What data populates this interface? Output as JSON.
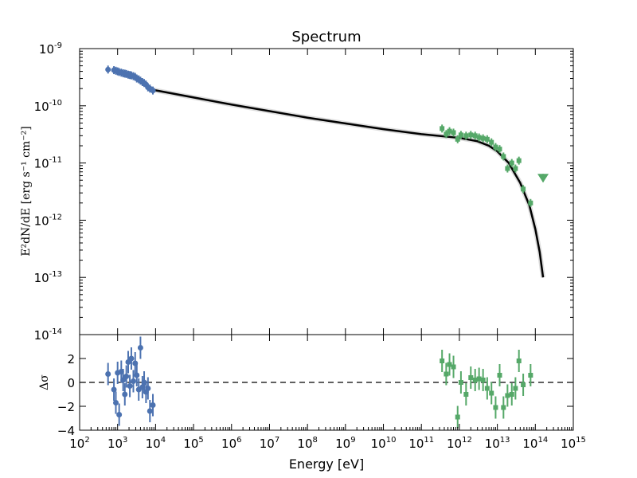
{
  "chart_data": [
    {
      "type": "scatter",
      "title": "Spectrum",
      "xlabel": "",
      "ylabel": "E²dN/dE [erg s⁻¹ cm⁻²]",
      "xscale": "log",
      "yscale": "log",
      "xlim": [
        100,
        1000000000000000.0
      ],
      "ylim": [
        1e-14,
        1e-09
      ],
      "xtick_labels": [
        "10^2",
        "10^3",
        "10^4",
        "10^5",
        "10^6",
        "10^7",
        "10^8",
        "10^9",
        "10^10",
        "10^11",
        "10^12",
        "10^13",
        "10^14",
        "10^15"
      ],
      "ytick_labels": [
        "10^-14",
        "10^-13",
        "10^-12",
        "10^-11",
        "10^-10",
        "10^-9"
      ],
      "series": [
        {
          "name": "",
          "color": "#4c72b0",
          "marker": "circle",
          "points": [
            [
              560,
              4.3e-10
            ],
            [
              800,
              4.2e-10
            ],
            [
              900,
              4.1e-10
            ],
            [
              1000,
              4e-10
            ],
            [
              1100,
              3.9e-10
            ],
            [
              1250,
              3.8e-10
            ],
            [
              1400,
              3.7e-10
            ],
            [
              1550,
              3.65e-10
            ],
            [
              1700,
              3.6e-10
            ],
            [
              1900,
              3.5e-10
            ],
            [
              2100,
              3.45e-10
            ],
            [
              2300,
              3.4e-10
            ],
            [
              2600,
              3.3e-10
            ],
            [
              2900,
              3.2e-10
            ],
            [
              3200,
              3e-10
            ],
            [
              3600,
              2.9e-10
            ],
            [
              4000,
              2.75e-10
            ],
            [
              4500,
              2.6e-10
            ],
            [
              5000,
              2.5e-10
            ],
            [
              5600,
              2.35e-10
            ],
            [
              6300,
              2.1e-10
            ],
            [
              7100,
              2e-10
            ],
            [
              8500,
              1.85e-10
            ]
          ]
        },
        {
          "name": "",
          "color": "#55a868",
          "marker": "square",
          "points": [
            [
              350000000000.0,
              4e-11
            ],
            [
              450000000000.0,
              3.2e-11
            ],
            [
              550000000000.0,
              3.6e-11
            ],
            [
              700000000000.0,
              3.4e-11
            ],
            [
              900000000000.0,
              2.6e-11
            ],
            [
              1100000000000.0,
              3.1e-11
            ],
            [
              1500000000000.0,
              3e-11
            ],
            [
              2000000000000.0,
              3.1e-11
            ],
            [
              2600000000000.0,
              3e-11
            ],
            [
              3300000000000.0,
              2.8e-11
            ],
            [
              4200000000000.0,
              2.7e-11
            ],
            [
              5400000000000.0,
              2.6e-11
            ],
            [
              7000000000000.0,
              2.3e-11
            ],
            [
              9000000000000.0,
              1.9e-11
            ],
            [
              11500000000000.0,
              1.75e-11
            ],
            [
              14500000000000.0,
              1.3e-11
            ],
            [
              18500000000000.0,
              8e-12
            ],
            [
              24000000000000.0,
              1e-11
            ],
            [
              30000000000000.0,
              8e-12
            ],
            [
              37000000000000.0,
              1.1e-11
            ],
            [
              48000000000000.0,
              3.5e-12
            ],
            [
              75000000000000.0,
              2e-12
            ]
          ]
        },
        {
          "name": "",
          "color": "#55a868",
          "marker": "triangle-down",
          "points": [
            [
              160000000000000.0,
              5.5e-12
            ]
          ]
        }
      ],
      "model_curve": {
        "color": "#000000",
        "points": [
          [
            8500,
            1.9e-10
          ],
          [
            1000000.0,
            1.05e-10
          ],
          [
            100000000.0,
            6.2e-11
          ],
          [
            10000000000.0,
            3.9e-11
          ],
          [
            100000000000.0,
            3.2e-11
          ],
          [
            1000000000000.0,
            2.75e-11
          ],
          [
            3000000000000.0,
            2.4e-11
          ],
          [
            6000000000000.0,
            2e-11
          ],
          [
            10000000000000.0,
            1.6e-11
          ],
          [
            20000000000000.0,
            1e-11
          ],
          [
            40000000000000.0,
            4.5e-12
          ],
          [
            70000000000000.0,
            1.8e-12
          ],
          [
            100000000000000.0,
            7e-13
          ],
          [
            130000000000000.0,
            2.8e-13
          ],
          [
            160000000000000.0,
            1e-13
          ]
        ]
      }
    },
    {
      "type": "scatter",
      "title": "",
      "xlabel": "Energy [eV]",
      "ylabel": "Δσ",
      "xscale": "log",
      "xlim": [
        100,
        1000000000000000.0
      ],
      "ylim": [
        -4,
        4
      ],
      "ytick_labels": [
        "−4",
        "−2",
        "0",
        "2"
      ],
      "reference_line": 0,
      "series": [
        {
          "name": "",
          "color": "#4c72b0",
          "marker": "circle",
          "points": [
            [
              560,
              0.7
            ],
            [
              800,
              -0.6
            ],
            [
              900,
              -1.7
            ],
            [
              1000,
              0.8
            ],
            [
              1100,
              -2.7
            ],
            [
              1250,
              0.9
            ],
            [
              1400,
              0.2
            ],
            [
              1550,
              -1.0
            ],
            [
              1700,
              0.5
            ],
            [
              1900,
              1.7
            ],
            [
              2100,
              -0.3
            ],
            [
              2300,
              2.0
            ],
            [
              2600,
              0.1
            ],
            [
              2900,
              1.6
            ],
            [
              3200,
              0.6
            ],
            [
              3600,
              -0.6
            ],
            [
              4000,
              2.9
            ],
            [
              4500,
              -0.4
            ],
            [
              5000,
              0.0
            ],
            [
              5600,
              -0.8
            ],
            [
              6300,
              -0.5
            ],
            [
              7100,
              -2.4
            ],
            [
              8500,
              -1.9
            ]
          ]
        },
        {
          "name": "",
          "color": "#55a868",
          "marker": "square",
          "points": [
            [
              350000000000.0,
              1.8
            ],
            [
              450000000000.0,
              0.7
            ],
            [
              550000000000.0,
              1.5
            ],
            [
              700000000000.0,
              1.3
            ],
            [
              900000000000.0,
              -2.9
            ],
            [
              1100000000000.0,
              0.0
            ],
            [
              1500000000000.0,
              -1.0
            ],
            [
              2000000000000.0,
              0.4
            ],
            [
              2600000000000.0,
              0.2
            ],
            [
              3300000000000.0,
              0.3
            ],
            [
              4200000000000.0,
              0.2
            ],
            [
              5400000000000.0,
              -0.5
            ],
            [
              7000000000000.0,
              -0.9
            ],
            [
              9000000000000.0,
              -2.1
            ],
            [
              11500000000000.0,
              0.6
            ],
            [
              14500000000000.0,
              -2.1
            ],
            [
              18500000000000.0,
              -1.1
            ],
            [
              24000000000000.0,
              -1.0
            ],
            [
              30000000000000.0,
              -0.5
            ],
            [
              37000000000000.0,
              1.8
            ],
            [
              48000000000000.0,
              -0.2
            ],
            [
              75000000000000.0,
              0.6
            ]
          ]
        }
      ]
    }
  ]
}
